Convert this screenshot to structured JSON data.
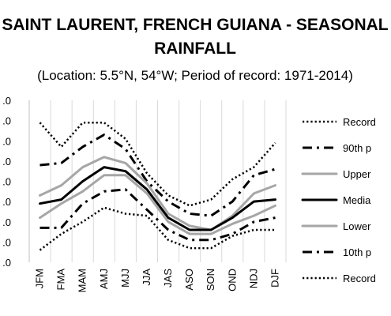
{
  "chart_data": {
    "type": "line",
    "title_lines": [
      "SAINT LAURENT, FRENCH GUIANA - SEASONAL",
      "RAINFALL"
    ],
    "subtitle": "(Location: 5.5°N, 54°W; Period of record: 1971-2014)",
    "categories": [
      "JFM",
      "FMA",
      "MAM",
      "AMJ",
      "MJJ",
      "JJA",
      "JAS",
      "ASO",
      "SON",
      "OND",
      "NDJ",
      "DJF"
    ],
    "y_tick_labels": [
      ".0",
      ".0",
      ".0",
      ".0",
      ".0",
      ".0",
      ".0",
      ".0",
      ".0"
    ],
    "ylim": [
      0,
      8
    ],
    "grid": "vertical",
    "legend_position": "right",
    "series": [
      {
        "name": "Record",
        "style": "dotted-black",
        "color": "#000000",
        "values": [
          6.9,
          5.7,
          6.9,
          6.9,
          6.1,
          4.4,
          3.3,
          2.8,
          3.1,
          4.1,
          4.7,
          5.9
        ]
      },
      {
        "name": "90th p",
        "style": "dashdot-black",
        "color": "#000000",
        "values": [
          4.8,
          4.9,
          5.7,
          6.3,
          5.6,
          4.0,
          3.0,
          2.4,
          2.3,
          3.0,
          4.3,
          4.6
        ]
      },
      {
        "name": "Upper",
        "style": "solid-gray",
        "color": "#a6a6a6",
        "values": [
          3.3,
          3.8,
          4.7,
          5.2,
          4.9,
          3.9,
          2.4,
          1.8,
          1.6,
          2.3,
          3.4,
          3.8
        ]
      },
      {
        "name": "Media",
        "style": "solid-black",
        "color": "#000000",
        "values": [
          2.9,
          3.1,
          4.0,
          4.7,
          4.5,
          3.6,
          2.2,
          1.6,
          1.6,
          2.2,
          3.0,
          3.1
        ]
      },
      {
        "name": "Lower",
        "style": "solid-gray",
        "color": "#a6a6a6",
        "values": [
          2.2,
          2.9,
          3.5,
          4.3,
          4.3,
          3.4,
          2.0,
          1.4,
          1.4,
          1.9,
          2.3,
          2.8
        ]
      },
      {
        "name": "10th p",
        "style": "dashdot-black",
        "color": "#000000",
        "values": [
          1.7,
          1.7,
          2.9,
          3.5,
          3.6,
          2.6,
          1.6,
          1.1,
          1.1,
          1.4,
          2.0,
          2.2
        ]
      },
      {
        "name": "Record",
        "style": "dotted-black",
        "color": "#000000",
        "values": [
          0.6,
          1.4,
          2.0,
          2.7,
          2.4,
          2.3,
          1.1,
          0.7,
          0.7,
          1.3,
          1.6,
          1.6
        ]
      }
    ]
  }
}
